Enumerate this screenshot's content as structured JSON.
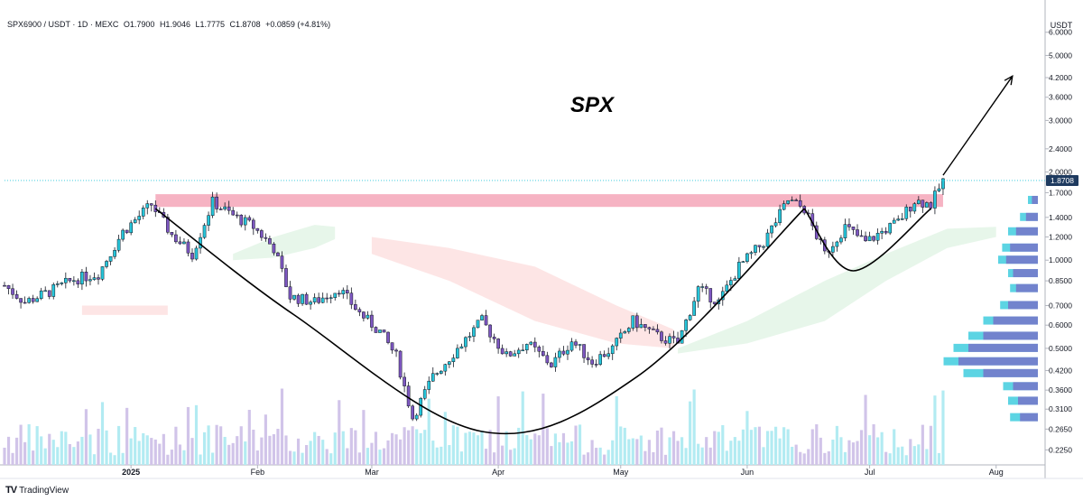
{
  "header": {
    "symbol": "SPX6900 / USDT · 1D · MEXC",
    "open": "O1.7900",
    "high": "H1.9046",
    "low": "L1.7775",
    "close": "C1.8708",
    "change": "+0.0859 (+4.81%)"
  },
  "footer": {
    "brand": "TradingView",
    "brand_icon": "tradingview-logo-icon"
  },
  "colors": {
    "bull": "#26c6da",
    "bear": "#7e57c2",
    "vol_bull": "#b2ebf2",
    "vol_bear": "#d1c4e9",
    "resistance_zone": "#f4a6b8",
    "cloud_bull": "#e3f4e6",
    "cloud_bear": "#fde0e0",
    "arc": "#000000",
    "price_line": "#26c6da",
    "price_label_bg": "#1e3a5f"
  },
  "chart_data": {
    "type": "candlestick",
    "title": "SPX",
    "y_unit_label": "USDT",
    "y_scale": "log",
    "ylim": [
      0.2,
      7.0
    ],
    "y_ticks": [
      "6.0000",
      "5.0000",
      "4.2000",
      "3.6000",
      "3.0000",
      "2.4000",
      "2.0000",
      "1.7000",
      "1.4000",
      "1.2000",
      "1.0000",
      "0.8500",
      "0.7000",
      "0.6000",
      "0.5000",
      "0.4200",
      "0.3600",
      "0.3100",
      "0.2650",
      "0.2250"
    ],
    "x_ticks": [
      {
        "label": "2025",
        "date": "2025-01-01"
      },
      {
        "label": "Feb",
        "date": "2025-02-01"
      },
      {
        "label": "Mar",
        "date": "2025-03-01"
      },
      {
        "label": "Apr",
        "date": "2025-04-01"
      },
      {
        "label": "May",
        "date": "2025-05-01"
      },
      {
        "label": "Jun",
        "date": "2025-06-01"
      },
      {
        "label": "Jul",
        "date": "2025-07-01"
      },
      {
        "label": "Aug",
        "date": "2025-08-01"
      }
    ],
    "xlim": [
      "2024-12-01",
      "2025-08-13"
    ],
    "current_price": "1.8708",
    "resistance_zone": {
      "low": 1.52,
      "high": 1.68,
      "from": "2025-01-07",
      "to": "2025-07-19"
    },
    "price_anchors": [
      [
        "2024-12-01",
        0.82
      ],
      [
        "2024-12-06",
        0.72
      ],
      [
        "2024-12-12",
        0.78
      ],
      [
        "2024-12-18",
        0.86
      ],
      [
        "2024-12-24",
        0.9
      ],
      [
        "2024-12-30",
        1.25
      ],
      [
        "2025-01-06",
        1.55
      ],
      [
        "2025-01-11",
        1.22
      ],
      [
        "2025-01-16",
        1.05
      ],
      [
        "2025-01-21",
        1.58
      ],
      [
        "2025-01-26",
        1.42
      ],
      [
        "2025-01-31",
        1.3
      ],
      [
        "2025-02-05",
        1.1
      ],
      [
        "2025-02-09",
        0.75
      ],
      [
        "2025-02-15",
        0.72
      ],
      [
        "2025-02-21",
        0.8
      ],
      [
        "2025-02-26",
        0.66
      ],
      [
        "2025-03-03",
        0.57
      ],
      [
        "2025-03-07",
        0.47
      ],
      [
        "2025-03-11",
        0.29
      ],
      [
        "2025-03-16",
        0.4
      ],
      [
        "2025-03-22",
        0.5
      ],
      [
        "2025-03-28",
        0.62
      ],
      [
        "2025-04-03",
        0.47
      ],
      [
        "2025-04-08",
        0.52
      ],
      [
        "2025-04-14",
        0.44
      ],
      [
        "2025-04-19",
        0.53
      ],
      [
        "2025-04-24",
        0.45
      ],
      [
        "2025-04-29",
        0.5
      ],
      [
        "2025-05-04",
        0.62
      ],
      [
        "2025-05-10",
        0.55
      ],
      [
        "2025-05-15",
        0.52
      ],
      [
        "2025-05-20",
        0.8
      ],
      [
        "2025-05-25",
        0.72
      ],
      [
        "2025-05-30",
        0.95
      ],
      [
        "2025-06-05",
        1.15
      ],
      [
        "2025-06-11",
        1.6
      ],
      [
        "2025-06-15",
        1.5
      ],
      [
        "2025-06-20",
        1.05
      ],
      [
        "2025-06-25",
        1.3
      ],
      [
        "2025-06-30",
        1.15
      ],
      [
        "2025-07-04",
        1.25
      ],
      [
        "2025-07-08",
        1.35
      ],
      [
        "2025-07-12",
        1.6
      ],
      [
        "2025-07-16",
        1.55
      ],
      [
        "2025-07-19",
        1.87
      ]
    ],
    "volume_scale": [
      0,
      1
    ],
    "ichimoku": {
      "cloud_bull_1": [
        [
          "2025-01-26",
          1.05,
          1.0
        ],
        [
          "2025-02-05",
          1.2,
          1.02
        ],
        [
          "2025-02-15",
          1.32,
          1.1
        ],
        [
          "2025-02-20",
          1.3,
          1.18
        ]
      ],
      "cloud_bear_1": [
        [
          "2024-12-20",
          0.7,
          0.65
        ],
        [
          "2025-01-10",
          0.7,
          0.65
        ]
      ],
      "cloud_bear_2": [
        [
          "2025-03-01",
          1.2,
          1.05
        ],
        [
          "2025-03-20",
          1.1,
          0.85
        ],
        [
          "2025-04-10",
          0.95,
          0.62
        ],
        [
          "2025-04-30",
          0.7,
          0.52
        ],
        [
          "2025-05-14",
          0.58,
          0.5
        ]
      ],
      "cloud_bull_2": [
        [
          "2025-05-15",
          0.5,
          0.48
        ],
        [
          "2025-06-01",
          0.62,
          0.52
        ],
        [
          "2025-06-20",
          0.85,
          0.62
        ],
        [
          "2025-07-05",
          1.05,
          0.85
        ],
        [
          "2025-07-20",
          1.28,
          1.1
        ],
        [
          "2025-08-01",
          1.3,
          1.2
        ]
      ]
    },
    "cup_arc": [
      [
        "2025-01-07",
        1.5
      ],
      [
        "2025-02-10",
        0.65
      ],
      [
        "2025-03-28",
        0.26
      ],
      [
        "2025-05-05",
        0.4
      ],
      [
        "2025-06-15",
        1.5
      ]
    ],
    "handle_arc": [
      [
        "2025-06-15",
        1.5
      ],
      [
        "2025-06-27",
        0.92
      ],
      [
        "2025-07-16",
        1.5
      ]
    ],
    "breakout_arrow": [
      [
        "2025-07-19",
        1.95
      ],
      [
        "2025-08-05",
        4.25
      ]
    ],
    "volume_profile": [
      {
        "price": 1.6,
        "bull": 0.1,
        "bear": 0.06
      },
      {
        "price": 1.4,
        "bull": 0.18,
        "bear": 0.12
      },
      {
        "price": 1.25,
        "bull": 0.3,
        "bear": 0.22
      },
      {
        "price": 1.1,
        "bull": 0.36,
        "bear": 0.28
      },
      {
        "price": 1.0,
        "bull": 0.4,
        "bear": 0.32
      },
      {
        "price": 0.9,
        "bull": 0.3,
        "bear": 0.25
      },
      {
        "price": 0.8,
        "bull": 0.28,
        "bear": 0.22
      },
      {
        "price": 0.7,
        "bull": 0.38,
        "bear": 0.3
      },
      {
        "price": 0.62,
        "bull": 0.55,
        "bear": 0.45
      },
      {
        "price": 0.55,
        "bull": 0.7,
        "bear": 0.55
      },
      {
        "price": 0.5,
        "bull": 0.85,
        "bear": 0.7
      },
      {
        "price": 0.45,
        "bull": 0.95,
        "bear": 0.8
      },
      {
        "price": 0.41,
        "bull": 0.75,
        "bear": 0.55
      },
      {
        "price": 0.37,
        "bull": 0.35,
        "bear": 0.25
      },
      {
        "price": 0.33,
        "bull": 0.3,
        "bear": 0.2
      },
      {
        "price": 0.29,
        "bull": 0.28,
        "bear": 0.18
      }
    ]
  }
}
